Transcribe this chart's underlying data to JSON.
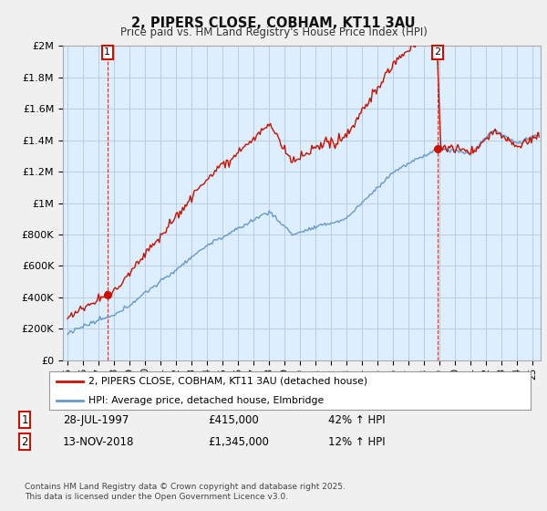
{
  "title": "2, PIPERS CLOSE, COBHAM, KT11 3AU",
  "subtitle": "Price paid vs. HM Land Registry's House Price Index (HPI)",
  "ylim": [
    0,
    2000000
  ],
  "yticks": [
    0,
    200000,
    400000,
    600000,
    800000,
    1000000,
    1200000,
    1400000,
    1600000,
    1800000,
    2000000
  ],
  "ytick_labels": [
    "£0",
    "£200K",
    "£400K",
    "£600K",
    "£800K",
    "£1M",
    "£1.2M",
    "£1.4M",
    "£1.6M",
    "£1.8M",
    "£2M"
  ],
  "hpi_color": "#6699cc",
  "price_color": "#cc1100",
  "purchase1_year": 1997.57,
  "purchase1_price": 415000,
  "purchase1_hpi_pct": 1.42,
  "purchase2_year": 2018.87,
  "purchase2_price": 1345000,
  "purchase2_hpi_pct": 1.12,
  "purchase1_date": "28-JUL-1997",
  "purchase1_hpi": "42%",
  "purchase2_date": "13-NOV-2018",
  "purchase2_hpi": "12%",
  "legend_line1": "2, PIPERS CLOSE, COBHAM, KT11 3AU (detached house)",
  "legend_line2": "HPI: Average price, detached house, Elmbridge",
  "footnote": "Contains HM Land Registry data © Crown copyright and database right 2025.\nThis data is licensed under the Open Government Licence v3.0.",
  "background_color": "#f0f0f0",
  "plot_bg_color": "#ddeeff",
  "grid_color": "#bbccdd",
  "xlim_start": 1994.7,
  "xlim_end": 2025.5
}
